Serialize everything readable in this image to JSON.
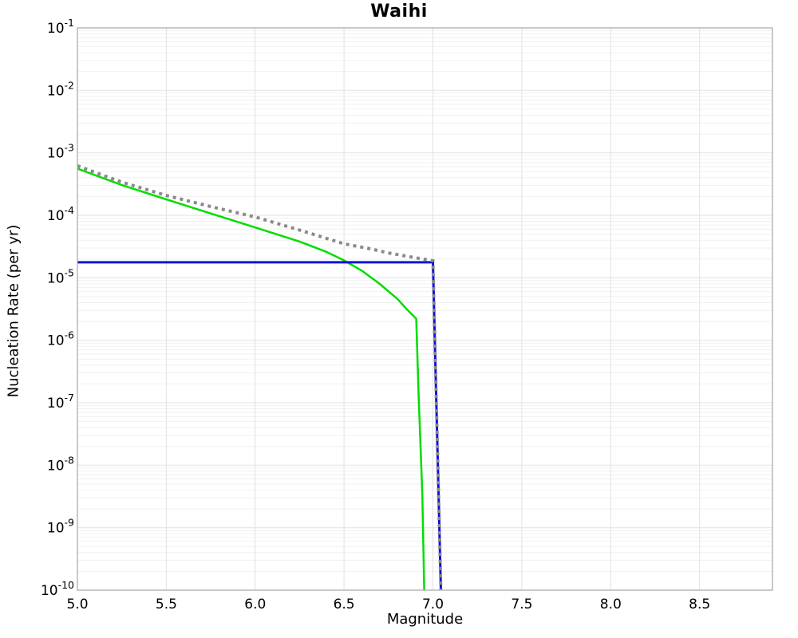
{
  "chart_data": {
    "type": "line",
    "title": "Waihi",
    "xlabel": "Magnitude",
    "ylabel": "Nucleation Rate (per yr)",
    "xlim": [
      5.0,
      8.91
    ],
    "ylim": [
      1e-10,
      0.1
    ],
    "y_exponent_range": [
      -1,
      -10
    ],
    "x_ticks": [
      5.0,
      5.5,
      6.0,
      6.5,
      7.0,
      7.5,
      8.0,
      8.5
    ],
    "y_tick_exponents": [
      -1,
      -2,
      -3,
      -4,
      -5,
      -6,
      -7,
      -8,
      -9,
      -10
    ],
    "grid": true,
    "legend": "none",
    "colors": {
      "grid_major": "#e2e2e2",
      "grid_minor": "#f1f1f1",
      "axis_border": "#a6a6a6",
      "green": "#00dd00",
      "blue": "#1111dd",
      "gray": "#8a8a8a"
    },
    "series": [
      {
        "name": "green-line",
        "color": "#00dd00",
        "style": "solid",
        "width": 2.5,
        "points": [
          [
            5.0,
            0.00056
          ],
          [
            5.25,
            0.000305
          ],
          [
            5.5,
            0.00018
          ],
          [
            5.75,
            0.000107
          ],
          [
            6.0,
            6.4e-05
          ],
          [
            6.25,
            3.8e-05
          ],
          [
            6.4,
            2.6e-05
          ],
          [
            6.5,
            1.9e-05
          ],
          [
            6.6,
            1.3e-05
          ],
          [
            6.7,
            8e-06
          ],
          [
            6.8,
            4.6e-06
          ],
          [
            6.85,
            3.2e-06
          ],
          [
            6.9,
            2.3e-06
          ],
          [
            6.906,
            2.2e-06
          ],
          [
            6.92,
            1.2e-07
          ],
          [
            6.94,
            3.5e-09
          ],
          [
            6.951,
            1e-10
          ]
        ]
      },
      {
        "name": "blue-line",
        "color": "#1111dd",
        "style": "solid",
        "width": 3,
        "points": [
          [
            5.0,
            1.77e-05
          ],
          [
            7.0,
            1.77e-05
          ],
          [
            7.045,
            1e-10
          ]
        ]
      },
      {
        "name": "gray-dotted-line",
        "color": "#8a8a8a",
        "style": "dotted",
        "width": 4,
        "points": [
          [
            5.0,
            0.00062
          ],
          [
            5.25,
            0.00034
          ],
          [
            5.5,
            0.000208
          ],
          [
            5.75,
            0.000138
          ],
          [
            6.0,
            9.4e-05
          ],
          [
            6.25,
            5.8e-05
          ],
          [
            6.5,
            3.5e-05
          ],
          [
            6.65,
            2.9e-05
          ],
          [
            6.75,
            2.5e-05
          ],
          [
            6.9,
            2.1e-05
          ],
          [
            7.0,
            1.87e-05
          ],
          [
            7.045,
            1e-10
          ]
        ]
      }
    ]
  }
}
